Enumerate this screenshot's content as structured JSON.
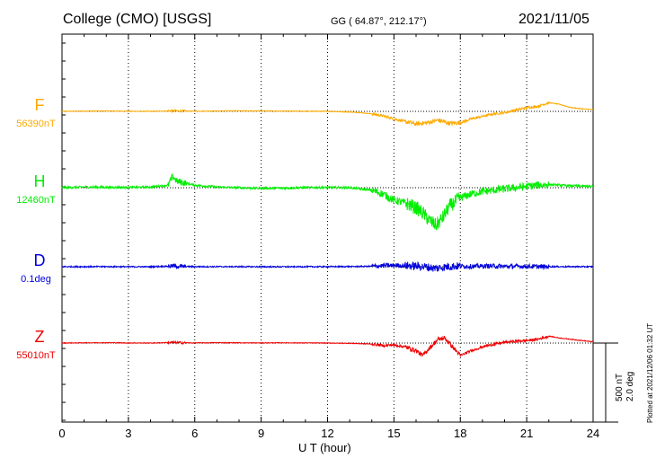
{
  "header": {
    "station": "College (CMO)  [USGS]",
    "coords": "GG ( 64.87°, 212.17°)",
    "date": "2021/11/05"
  },
  "footer": {
    "xlabel": "U T (hour)",
    "plotted": "Plotted at 2021/12/06 01:32 UT"
  },
  "scale_bar": {
    "line1": "500 nT",
    "line2": "2.0 deg"
  },
  "chart_data": {
    "type": "line",
    "title": "College (CMO)  [USGS]",
    "xlabel": "U T (hour)",
    "ylabel": "",
    "xlim": [
      0,
      24
    ],
    "x_ticks": [
      "0",
      "3",
      "6",
      "9",
      "12",
      "15",
      "18",
      "21",
      "24"
    ],
    "grid": "vertical dotted every 3 hours; dotted baseline per trace",
    "scale": "500 nT / 2.0 deg per bar",
    "series": [
      {
        "name": "F",
        "baseline_label": "56390nT",
        "color": "#ffaa00",
        "unit": "nT",
        "x": [
          0,
          1,
          2,
          3,
          4,
          5,
          5.5,
          6,
          7,
          8,
          9,
          10,
          11,
          12,
          13,
          13.5,
          14,
          14.5,
          15,
          15.5,
          16,
          16.5,
          17,
          17.5,
          18,
          18.5,
          19,
          19.5,
          20,
          20.5,
          21,
          21.5,
          22,
          22.5,
          23,
          23.5,
          24
        ],
        "values": [
          0,
          2,
          3,
          1,
          0,
          4,
          2,
          1,
          3,
          4,
          3,
          2,
          1,
          0,
          -5,
          -10,
          -20,
          -35,
          -60,
          -80,
          -100,
          -90,
          -70,
          -95,
          -90,
          -60,
          -40,
          -20,
          -10,
          10,
          30,
          40,
          70,
          55,
          30,
          20,
          15
        ]
      },
      {
        "name": "H",
        "baseline_label": "12460nT",
        "color": "#00ee00",
        "unit": "nT",
        "x": [
          0,
          1,
          2,
          3,
          4,
          4.8,
          5,
          5.2,
          5.5,
          6,
          7,
          8,
          9,
          10,
          11,
          12,
          13,
          14,
          14.5,
          15,
          15.5,
          16,
          16.3,
          16.6,
          16.9,
          17.2,
          17.5,
          18,
          18.5,
          19,
          19.5,
          20,
          20.5,
          21,
          21.5,
          22,
          23,
          24
        ],
        "values": [
          0,
          5,
          3,
          2,
          5,
          20,
          90,
          50,
          40,
          20,
          5,
          0,
          -5,
          -3,
          0,
          2,
          0,
          -20,
          -50,
          -100,
          -120,
          -160,
          -200,
          -260,
          -300,
          -240,
          -150,
          -80,
          -50,
          -30,
          -20,
          -10,
          0,
          10,
          20,
          25,
          15,
          10
        ]
      },
      {
        "name": "D",
        "baseline_label": "0.1deg",
        "color": "#0000dd",
        "unit": "deg",
        "x": [
          0,
          1,
          2,
          3,
          4,
          5,
          5.5,
          6,
          7,
          8,
          9,
          10,
          11,
          12,
          13,
          13.5,
          14,
          14.5,
          15,
          15.5,
          16,
          16.5,
          16.9,
          17.2,
          17.5,
          18,
          18.5,
          19,
          19.5,
          20,
          20.5,
          21,
          21.5,
          22,
          23,
          24
        ],
        "values": [
          0,
          0.002,
          0.003,
          0,
          -0.002,
          0.02,
          0.005,
          0.003,
          0.002,
          0.001,
          0,
          -0.002,
          0,
          0.002,
          0.005,
          0.01,
          0.015,
          0.03,
          0.045,
          0.035,
          0.02,
          -0.01,
          -0.055,
          -0.02,
          0.01,
          0.02,
          0.01,
          0.02,
          0.025,
          0.01,
          0.015,
          0.01,
          0.005,
          0.003,
          0.002,
          0
        ]
      },
      {
        "name": "Z",
        "baseline_label": "55010nT",
        "color": "#ee0000",
        "unit": "nT",
        "x": [
          0,
          1,
          2,
          3,
          4,
          5,
          5.5,
          6,
          7,
          8,
          9,
          10,
          11,
          12,
          13,
          13.5,
          14,
          14.5,
          15,
          15.5,
          16,
          16.3,
          16.6,
          17,
          17.3,
          17.6,
          18,
          18.5,
          19,
          19.5,
          20,
          20.5,
          21,
          21.5,
          22,
          22.5,
          23,
          23.5,
          24
        ],
        "values": [
          0,
          2,
          3,
          1,
          0,
          5,
          2,
          1,
          3,
          2,
          1,
          2,
          1,
          0,
          -2,
          -5,
          -8,
          -20,
          -15,
          -30,
          -60,
          -100,
          -40,
          30,
          40,
          -20,
          -100,
          -60,
          -30,
          -10,
          5,
          15,
          20,
          30,
          55,
          40,
          30,
          20,
          10
        ]
      }
    ]
  }
}
